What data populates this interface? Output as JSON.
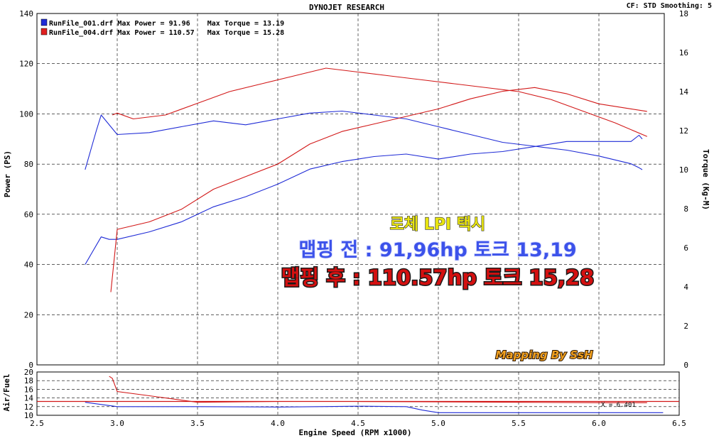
{
  "header": {
    "title": "DYNOJET RESEARCH",
    "settings": "CF: STD  Smoothing: 5"
  },
  "legend": [
    {
      "file": "RunFile_001.drf",
      "text": "RunFile_001.drf Max Power = 91.96    Max Torque = 13.19",
      "color": "#1f2bd6"
    },
    {
      "file": "RunFile_004.drf",
      "text": "RunFile_004.drf Max Power = 110.57   Max Torque = 15.28",
      "color": "#e02020"
    }
  ],
  "overlay": {
    "line1": "로체 LPI 택시",
    "line2": "맵핑 전 : 91,96hp 토크 13,19",
    "line3": "맵핑 후 : 110.57hp 토크 15,28",
    "credit": "Mapping By SsH"
  },
  "chart_data": [
    {
      "type": "line",
      "title": "DYNOJET RESEARCH",
      "xlabel": "Engine Speed (RPM x1000)",
      "ylabel": "Power (PS)",
      "y2label": "Torque (Kg-M)",
      "xlim": [
        2.5,
        6.5
      ],
      "ylim": [
        0,
        140
      ],
      "y2lim": [
        0,
        18
      ],
      "xticks": [
        "2.5",
        "3.0",
        "3.5",
        "4.0",
        "4.5",
        "5.0",
        "5.5",
        "6.0",
        "6.5"
      ],
      "yticks": [
        "0",
        "20",
        "40",
        "60",
        "80",
        "100",
        "120",
        "140"
      ],
      "y2ticks": [
        "0",
        "2",
        "4",
        "6",
        "8",
        "10",
        "12",
        "14",
        "16",
        "18"
      ],
      "grid": true,
      "legend_position": "top-left",
      "series": [
        {
          "name": "RunFile_001.drf",
          "measure": "Power",
          "axis": "left",
          "color": "#1f2bd6",
          "x": [
            2.8,
            2.9,
            2.95,
            3.0,
            3.2,
            3.4,
            3.6,
            3.8,
            4.0,
            4.2,
            4.4,
            4.6,
            4.8,
            5.0,
            5.2,
            5.4,
            5.6,
            5.8,
            6.0,
            6.2,
            6.25,
            6.27
          ],
          "y": [
            40,
            51,
            50,
            50,
            53,
            57,
            63,
            67,
            72,
            78,
            81,
            83,
            84,
            82,
            84,
            85,
            87,
            89,
            89,
            89,
            91.5,
            90
          ]
        },
        {
          "name": "RunFile_001.drf",
          "measure": "Torque",
          "axis": "right",
          "color": "#1f2bd6",
          "x": [
            2.8,
            2.87,
            2.9,
            3.0,
            3.2,
            3.4,
            3.6,
            3.8,
            4.0,
            4.2,
            4.4,
            4.6,
            4.8,
            5.0,
            5.2,
            5.4,
            5.6,
            5.8,
            6.0,
            6.2,
            6.25,
            6.27
          ],
          "y": [
            10.0,
            12.0,
            12.8,
            11.8,
            11.9,
            12.2,
            12.5,
            12.3,
            12.6,
            12.9,
            13.0,
            12.8,
            12.6,
            12.2,
            11.8,
            11.4,
            11.2,
            11.0,
            10.7,
            10.3,
            10.1,
            10.0
          ]
        },
        {
          "name": "RunFile_004.drf",
          "measure": "Power",
          "axis": "left",
          "color": "#d21818",
          "x": [
            2.96,
            3.0,
            3.2,
            3.4,
            3.6,
            3.8,
            4.0,
            4.2,
            4.4,
            4.6,
            4.8,
            5.0,
            5.2,
            5.4,
            5.6,
            5.8,
            6.0,
            6.2,
            6.3
          ],
          "y": [
            29,
            54,
            57,
            62,
            70,
            75,
            80,
            88,
            93,
            96,
            99,
            102,
            106,
            109,
            110.5,
            108,
            104,
            102,
            101
          ]
        },
        {
          "name": "RunFile_004.drf",
          "measure": "Torque",
          "axis": "right",
          "color": "#d21818",
          "x": [
            2.97,
            3.0,
            3.1,
            3.3,
            3.5,
            3.7,
            3.9,
            4.1,
            4.3,
            4.5,
            4.7,
            4.9,
            5.1,
            5.3,
            5.5,
            5.7,
            5.9,
            6.1,
            6.3
          ],
          "y": [
            12.8,
            12.9,
            12.6,
            12.8,
            13.4,
            14.0,
            14.4,
            14.8,
            15.2,
            15.0,
            14.8,
            14.6,
            14.4,
            14.2,
            14.0,
            13.6,
            13.0,
            12.4,
            11.7
          ]
        }
      ]
    },
    {
      "type": "line",
      "ylabel": "Air/Fuel",
      "xlabel": "Engine Speed (RPM x1000)",
      "xlim": [
        2.5,
        6.5
      ],
      "ylim": [
        10,
        20
      ],
      "yticks": [
        "10",
        "12",
        "14",
        "16",
        "18",
        "20"
      ],
      "grid": true,
      "annotation": "X = 6.401",
      "reference_line": 13.2,
      "series": [
        {
          "name": "RunFile_001.drf",
          "color": "#1f2bd6",
          "x": [
            2.8,
            3.0,
            3.5,
            4.0,
            4.5,
            4.8,
            4.9,
            5.0,
            5.5,
            5.9,
            6.0,
            6.4
          ],
          "y": [
            13.0,
            12.0,
            12.0,
            11.9,
            12.1,
            12.0,
            11.2,
            10.6,
            10.6,
            10.6,
            10.6,
            10.6
          ]
        },
        {
          "name": "RunFile_004.drf",
          "color": "#d21818",
          "x": [
            2.95,
            2.97,
            3.0,
            3.2,
            3.5,
            4.0,
            4.5,
            5.0,
            5.5,
            6.0,
            6.3
          ],
          "y": [
            19.0,
            18.5,
            15.5,
            14.5,
            13.0,
            13.2,
            13.2,
            13.1,
            13.0,
            12.9,
            12.9
          ]
        }
      ]
    }
  ]
}
